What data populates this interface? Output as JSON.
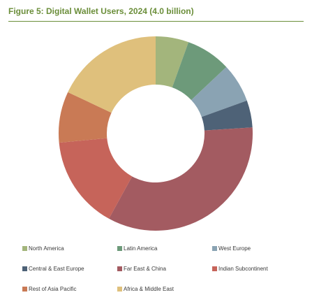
{
  "chart_data": {
    "type": "pie",
    "title": "Figure 5: Digital Wallet Users, 2024 (4.0 billion)",
    "donut": true,
    "legend_position": "bottom",
    "categories": [
      "North America",
      "Latin America",
      "West Europe",
      "Central & East Europe",
      "Far East & China",
      "Indian Subcontinent",
      "Rest of Asia Pacific",
      "Africa & Middle East"
    ],
    "values": [
      5.5,
      7.5,
      6.5,
      4.5,
      34.0,
      15.5,
      8.5,
      18.0
    ],
    "colors": [
      "#a3b57c",
      "#6d9a7a",
      "#8aa3b3",
      "#4e6277",
      "#a35b61",
      "#c6645a",
      "#c97a55",
      "#dfc07c"
    ]
  }
}
